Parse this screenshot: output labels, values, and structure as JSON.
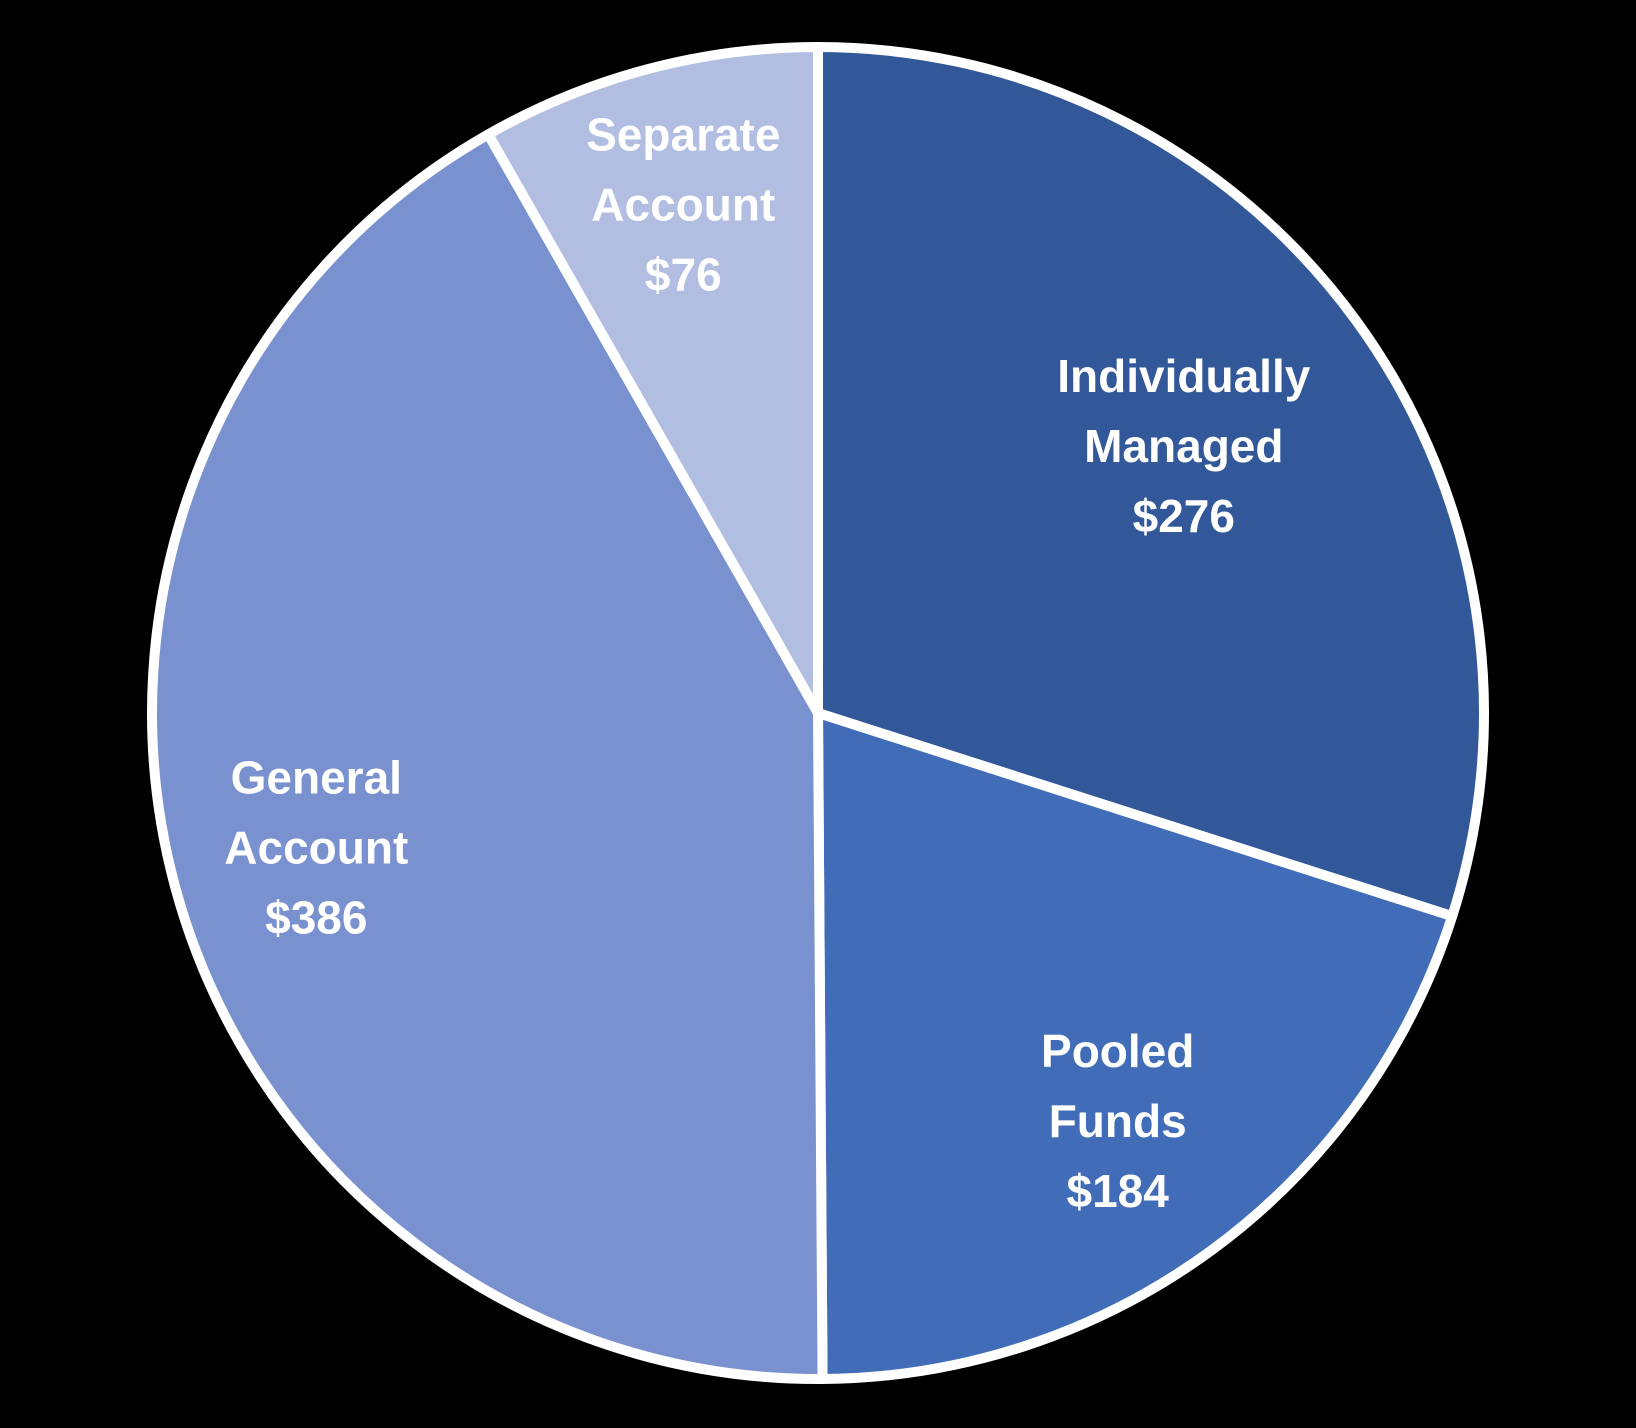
{
  "chart_data": {
    "type": "pie",
    "title": "",
    "legend": "none",
    "direction": "clockwise",
    "start_angle_deg": 0,
    "total": 922,
    "value_prefix": "$",
    "background_color": "#000000",
    "divider_color": "#FFFFFF",
    "label_text_color": "#FFFFFF",
    "slices": [
      {
        "label": "Individually Managed",
        "value": 276,
        "display_value": "$276",
        "color": "#32589A"
      },
      {
        "label": "Pooled Funds",
        "value": 184,
        "display_value": "$184",
        "color": "#416CB8"
      },
      {
        "label": "General Account",
        "value": 386,
        "display_value": "$386",
        "color": "#7991CF"
      },
      {
        "label": "Separate Account",
        "value": 76,
        "display_value": "$76",
        "color": "#B2BEE1"
      }
    ]
  }
}
